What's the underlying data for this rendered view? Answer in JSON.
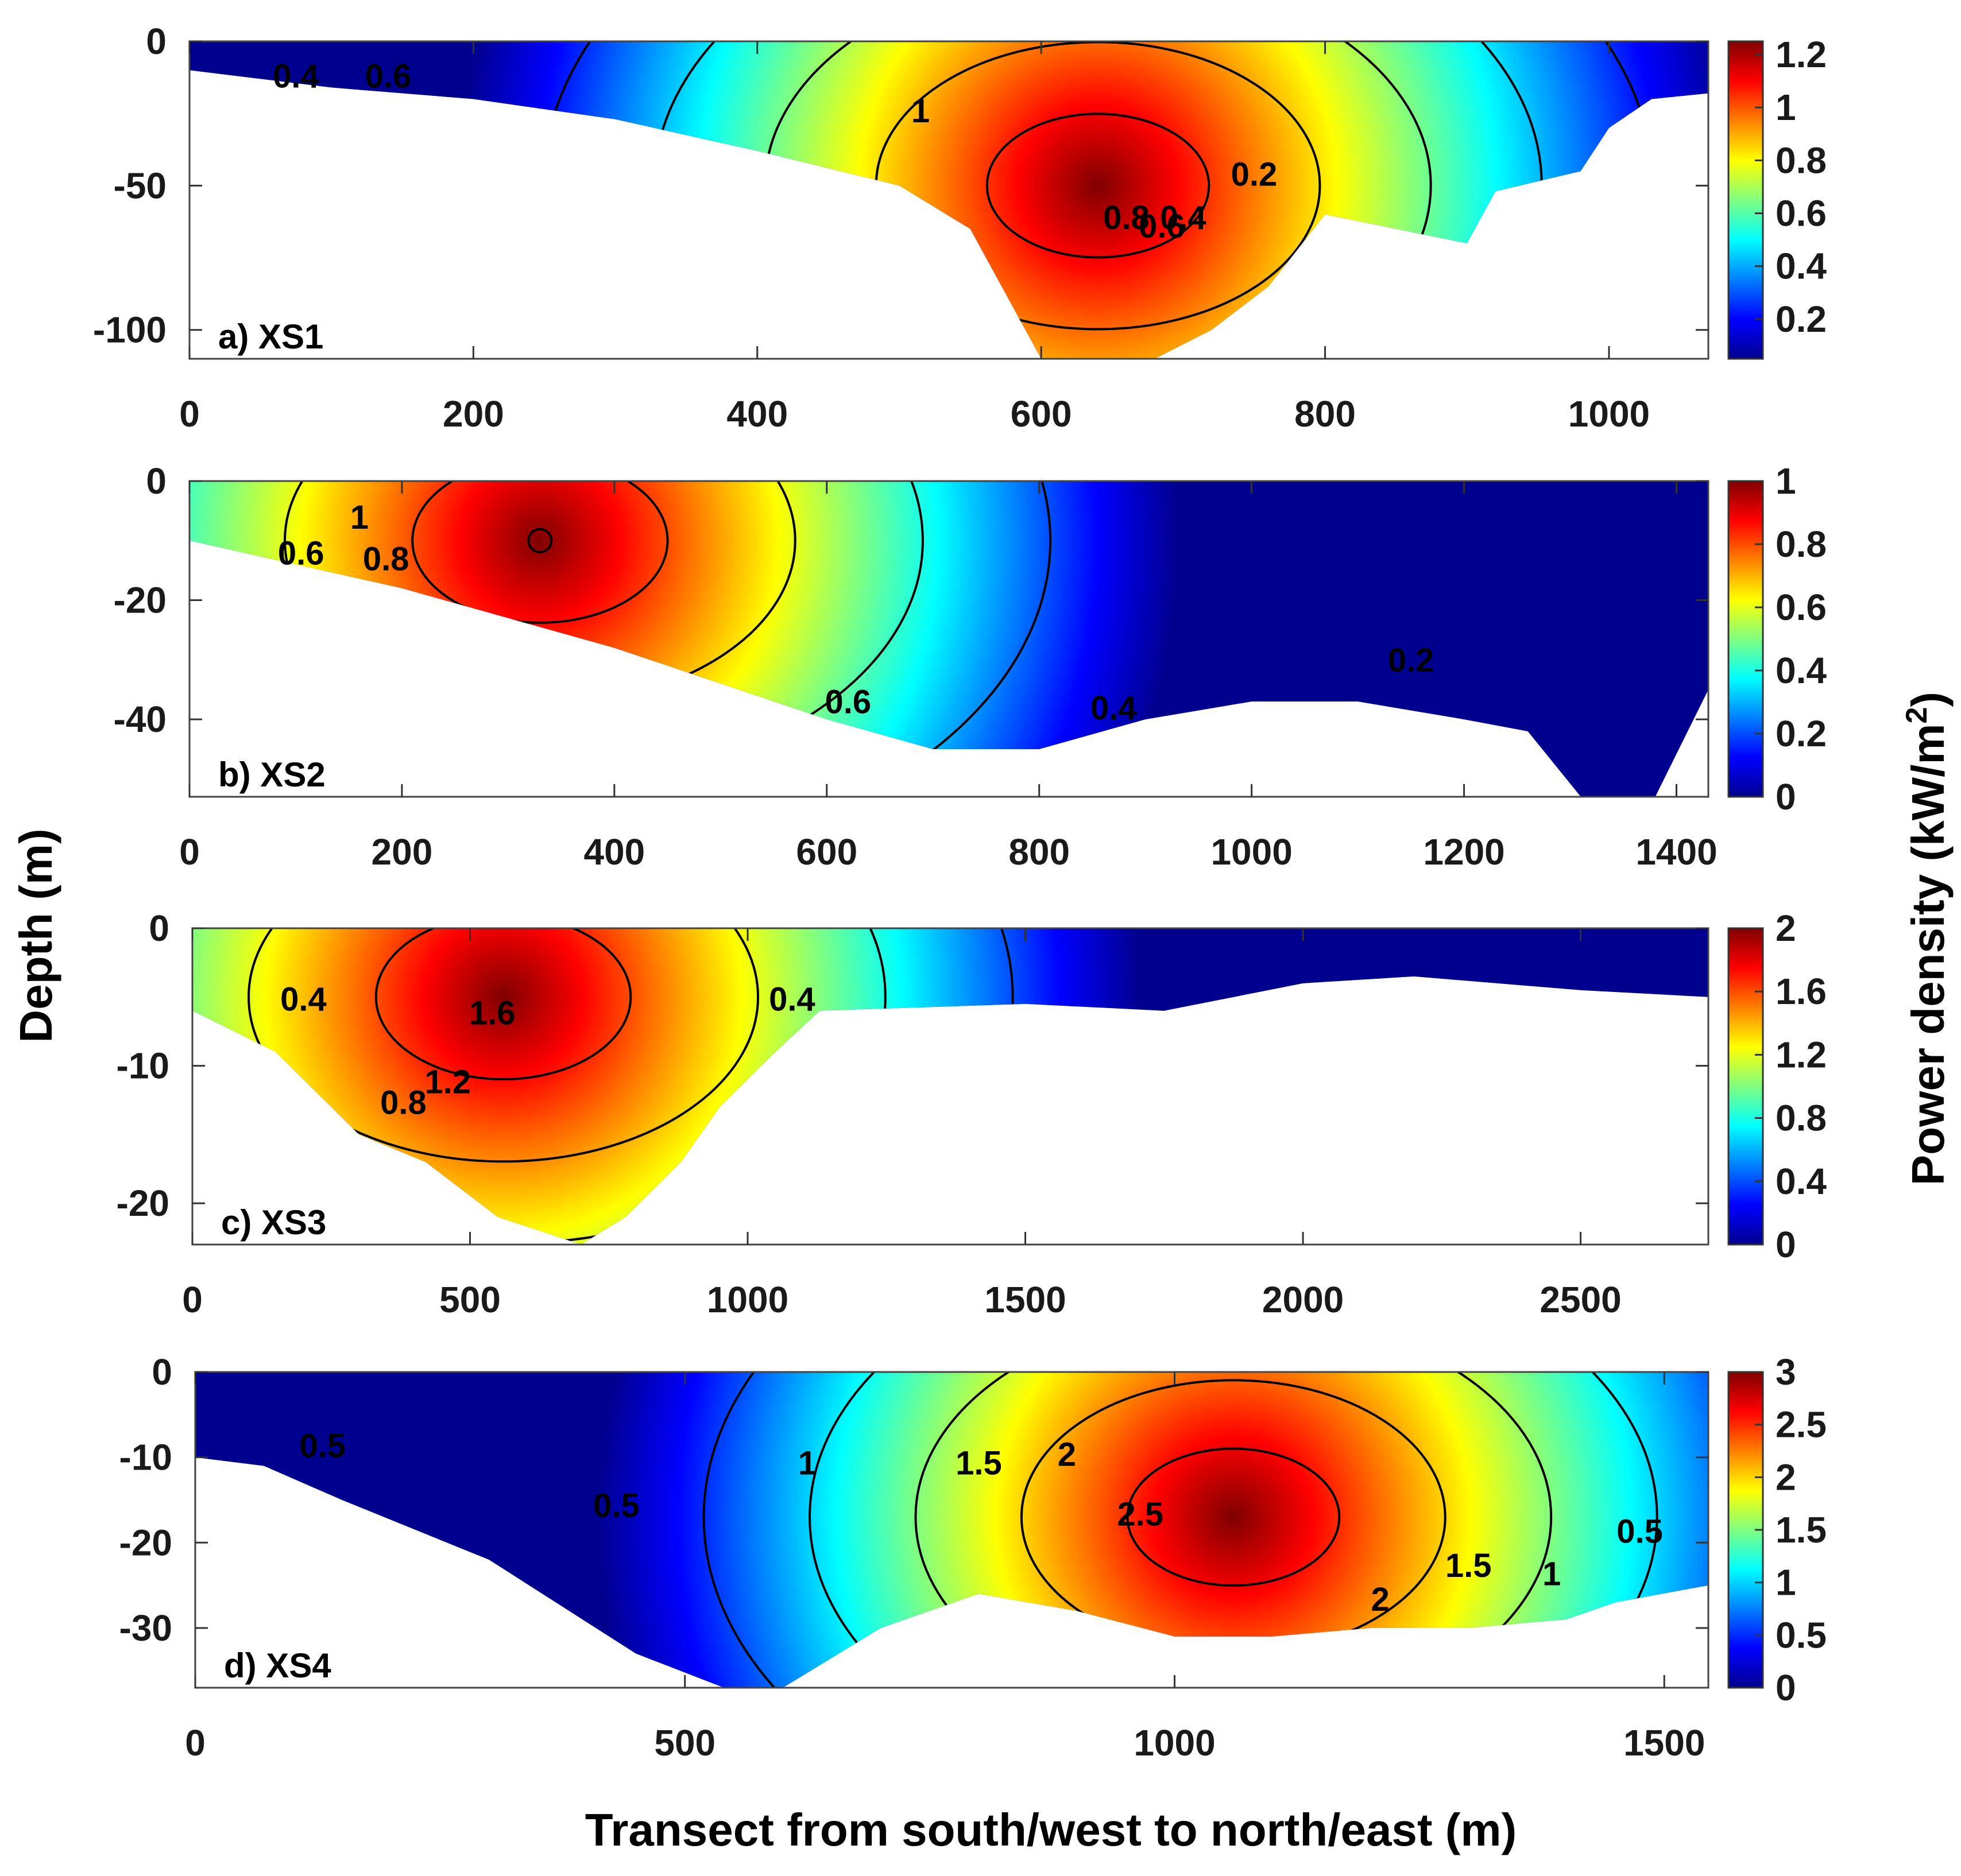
{
  "chart_data": [
    {
      "type": "heatmap",
      "panel_label": "a) XS1",
      "xlim": [
        0,
        1070
      ],
      "ylim": [
        -110,
        0
      ],
      "xticks": [
        0,
        200,
        400,
        600,
        800,
        1000
      ],
      "yticks": [
        0,
        -50,
        -100
      ],
      "colorbar": {
        "min": 0.05,
        "max": 1.25,
        "ticks": [
          0.2,
          0.4,
          0.6,
          0.8,
          1,
          1.2
        ]
      },
      "bottom_profile": [
        [
          0,
          -10
        ],
        [
          100,
          -16
        ],
        [
          200,
          -20
        ],
        [
          300,
          -27
        ],
        [
          400,
          -38
        ],
        [
          500,
          -50
        ],
        [
          550,
          -65
        ],
        [
          600,
          -110
        ],
        [
          680,
          -110
        ],
        [
          720,
          -100
        ],
        [
          760,
          -85
        ],
        [
          800,
          -60
        ],
        [
          900,
          -70
        ],
        [
          920,
          -52
        ],
        [
          980,
          -45
        ],
        [
          1000,
          -30
        ],
        [
          1030,
          -20
        ],
        [
          1070,
          -18
        ]
      ],
      "core": {
        "x": 640,
        "y": -50,
        "value": 1.2
      },
      "contour_levels": [
        0.2,
        0.4,
        0.6,
        0.8,
        1
      ],
      "contour_labels": [
        {
          "text": "0.4",
          "x": 75,
          "y": -16
        },
        {
          "text": "0.6",
          "x": 140,
          "y": -16
        },
        {
          "text": "1",
          "x": 515,
          "y": -28
        },
        {
          "text": "0.8",
          "x": 660,
          "y": -65
        },
        {
          "text": "0.6",
          "x": 685,
          "y": -68
        },
        {
          "text": "0.4",
          "x": 700,
          "y": -65
        },
        {
          "text": "0.2",
          "x": 750,
          "y": -50
        }
      ]
    },
    {
      "type": "heatmap",
      "panel_label": "b) XS2",
      "xlim": [
        0,
        1430
      ],
      "ylim": [
        -53,
        0
      ],
      "xticks": [
        0,
        200,
        400,
        600,
        800,
        1000,
        1200,
        1400
      ],
      "yticks": [
        0,
        -20,
        -40
      ],
      "colorbar": {
        "min": 0,
        "max": 1,
        "ticks": [
          0,
          0.2,
          0.4,
          0.6,
          0.8,
          1
        ]
      },
      "bottom_profile": [
        [
          0,
          -10
        ],
        [
          100,
          -14
        ],
        [
          200,
          -18
        ],
        [
          300,
          -23
        ],
        [
          400,
          -28
        ],
        [
          500,
          -34
        ],
        [
          600,
          -40
        ],
        [
          700,
          -45
        ],
        [
          800,
          -45
        ],
        [
          900,
          -40
        ],
        [
          1000,
          -37
        ],
        [
          1100,
          -37
        ],
        [
          1200,
          -40
        ],
        [
          1260,
          -42
        ],
        [
          1310,
          -53
        ],
        [
          1380,
          -53
        ],
        [
          1430,
          -35
        ]
      ],
      "core": {
        "x": 330,
        "y": -10,
        "value": 1.0
      },
      "contour_levels": [
        0.2,
        0.4,
        0.6,
        0.8,
        1
      ],
      "contour_labels": [
        {
          "text": "1",
          "x": 160,
          "y": -8
        },
        {
          "text": "0.6",
          "x": 105,
          "y": -14
        },
        {
          "text": "0.8",
          "x": 185,
          "y": -15
        },
        {
          "text": "0.6",
          "x": 620,
          "y": -39
        },
        {
          "text": "0.4",
          "x": 870,
          "y": -40
        },
        {
          "text": "0.2",
          "x": 1150,
          "y": -32
        }
      ]
    },
    {
      "type": "heatmap",
      "panel_label": "c) XS3",
      "xlim": [
        0,
        2730
      ],
      "ylim": [
        -23,
        0
      ],
      "xticks": [
        0,
        500,
        1000,
        1500,
        2000,
        2500
      ],
      "yticks": [
        0,
        -10,
        -20
      ],
      "colorbar": {
        "min": 0,
        "max": 2,
        "ticks": [
          0,
          0.4,
          0.8,
          1.2,
          1.6,
          2
        ]
      },
      "bottom_profile": [
        [
          0,
          -6
        ],
        [
          150,
          -9
        ],
        [
          300,
          -15
        ],
        [
          420,
          -17
        ],
        [
          550,
          -21
        ],
        [
          700,
          -23
        ],
        [
          780,
          -21
        ],
        [
          880,
          -17
        ],
        [
          950,
          -13
        ],
        [
          1050,
          -9
        ],
        [
          1130,
          -6
        ],
        [
          1500,
          -5.5
        ],
        [
          1750,
          -6
        ],
        [
          2000,
          -4
        ],
        [
          2200,
          -3.5
        ],
        [
          2500,
          -4.5
        ],
        [
          2730,
          -5
        ]
      ],
      "core": {
        "x": 560,
        "y": -5,
        "value": 2.0
      },
      "contour_levels": [
        0.4,
        0.8,
        1.2,
        1.6
      ],
      "contour_labels": [
        {
          "text": "0.4",
          "x": 200,
          "y": -6
        },
        {
          "text": "1.6",
          "x": 540,
          "y": -7
        },
        {
          "text": "1.2",
          "x": 460,
          "y": -12
        },
        {
          "text": "0.8",
          "x": 380,
          "y": -13.5
        },
        {
          "text": "0.4",
          "x": 1080,
          "y": -6
        }
      ]
    },
    {
      "type": "heatmap",
      "panel_label": "d) XS4",
      "xlim": [
        0,
        1545
      ],
      "ylim": [
        -37,
        0
      ],
      "xticks": [
        0,
        500,
        1000,
        1500
      ],
      "yticks": [
        0,
        -10,
        -20,
        -30
      ],
      "colorbar": {
        "min": 0,
        "max": 3,
        "ticks": [
          0,
          0.5,
          1,
          1.5,
          2,
          2.5,
          3
        ]
      },
      "bottom_profile": [
        [
          0,
          -10
        ],
        [
          70,
          -11
        ],
        [
          150,
          -15
        ],
        [
          300,
          -22
        ],
        [
          450,
          -33
        ],
        [
          540,
          -37
        ],
        [
          600,
          -37
        ],
        [
          700,
          -30
        ],
        [
          800,
          -26
        ],
        [
          900,
          -28
        ],
        [
          1000,
          -31
        ],
        [
          1100,
          -31
        ],
        [
          1200,
          -30
        ],
        [
          1300,
          -30
        ],
        [
          1400,
          -29
        ],
        [
          1450,
          -27
        ],
        [
          1545,
          -25
        ]
      ],
      "core": {
        "x": 1060,
        "y": -17,
        "value": 3.0
      },
      "contour_levels": [
        0.5,
        1,
        1.5,
        2,
        2.5
      ],
      "contour_labels": [
        {
          "text": "0.5",
          "x": 130,
          "y": -10
        },
        {
          "text": "0.5",
          "x": 430,
          "y": -17
        },
        {
          "text": "1",
          "x": 625,
          "y": -12
        },
        {
          "text": "1.5",
          "x": 800,
          "y": -12
        },
        {
          "text": "2",
          "x": 890,
          "y": -11
        },
        {
          "text": "2.5",
          "x": 965,
          "y": -18
        },
        {
          "text": "2",
          "x": 1210,
          "y": -28
        },
        {
          "text": "1.5",
          "x": 1300,
          "y": -24
        },
        {
          "text": "1",
          "x": 1385,
          "y": -25
        },
        {
          "text": "0.5",
          "x": 1475,
          "y": -20
        }
      ]
    }
  ],
  "ylabel": "Depth (m)",
  "xlabel": "Transect from south/west to north/east (m)",
  "colorbar_label": "Power density  (kW/m",
  "colorbar_label_sup": "2",
  "colorbar_label_close": ")",
  "colormap": [
    "#00008f",
    "#0000ff",
    "#0080ff",
    "#00ffff",
    "#80ff80",
    "#ffff00",
    "#ff8000",
    "#ff0000",
    "#800000"
  ]
}
